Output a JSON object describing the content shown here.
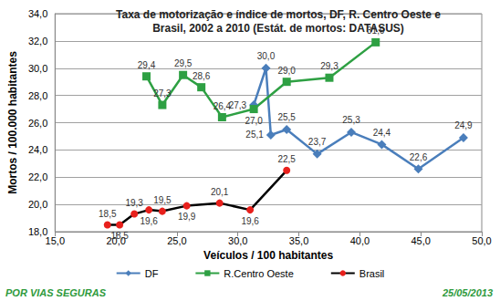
{
  "chart_data": {
    "type": "line",
    "title": "Taxa de motorização e índice de mortos, DF, R. Centro Oeste e\nBrasil, 2002 a 2010 (Estát. de mortos: DATASUS)",
    "x_label": "Veículos / 100 habitantes",
    "y_label": "Mortos / 100.000 habitantes",
    "source": "POR VIAS SEGURAS",
    "date": "25/05/2013",
    "xlim": [
      15,
      50
    ],
    "xticks": [
      {
        "value": 15,
        "label": "15,0"
      },
      {
        "value": 20,
        "label": "20,0"
      },
      {
        "value": 25,
        "label": "25,0"
      },
      {
        "value": 30,
        "label": "30,0"
      },
      {
        "value": 35,
        "label": "35,0"
      },
      {
        "value": 40,
        "label": "40,0"
      },
      {
        "value": 45,
        "label": "45,0"
      },
      {
        "value": 50,
        "label": "50,0"
      }
    ],
    "ylim": [
      18,
      34
    ],
    "yticks": [
      {
        "value": 18,
        "label": "18,0"
      },
      {
        "value": 20,
        "label": "20,0"
      },
      {
        "value": 22,
        "label": "22,0"
      },
      {
        "value": 24,
        "label": "24,0"
      },
      {
        "value": 26,
        "label": "26,0"
      },
      {
        "value": 28,
        "label": "28,0"
      },
      {
        "value": 30,
        "label": "30,0"
      },
      {
        "value": 32,
        "label": "32,0"
      },
      {
        "value": 34,
        "label": "34,0"
      }
    ],
    "grid": true,
    "legend": "bottom",
    "data_labels": true,
    "series": [
      {
        "name": "DF",
        "color": "#4a7ebb",
        "marker": "diamond",
        "x": [
          31.3,
          32.3,
          32.7,
          34.0,
          36.5,
          39.3,
          41.8,
          44.8,
          48.5
        ],
        "values": [
          27.3,
          30.0,
          25.1,
          25.5,
          23.7,
          25.3,
          24.4,
          22.6,
          24.9
        ],
        "value_labels": [
          "27,3",
          "30,0",
          "25,1",
          "25,5",
          "23,7",
          "25,3",
          "24,4",
          "22,6",
          "24,9"
        ]
      },
      {
        "name": "R.Centro Oeste",
        "color": "#2ea043",
        "marker": "square",
        "x": [
          22.5,
          23.8,
          25.5,
          27.0,
          28.7,
          31.3,
          34.0,
          37.5,
          41.3
        ],
        "values": [
          29.4,
          27.3,
          29.5,
          28.6,
          26.4,
          27.0,
          29.0,
          29.3,
          31.9
        ],
        "value_labels": [
          "29,4",
          "27,3",
          "29,5",
          "28,6",
          "26,4",
          "27,0",
          "29,0",
          "29,3",
          "31,9"
        ]
      },
      {
        "name": "Brasil",
        "color": "#e8201c",
        "marker": "circle",
        "x": [
          19.3,
          20.3,
          21.5,
          22.7,
          23.8,
          25.8,
          28.5,
          31.0,
          34.0
        ],
        "values": [
          18.5,
          18.5,
          19.3,
          19.6,
          19.5,
          19.9,
          20.1,
          19.6,
          22.5
        ],
        "value_labels": [
          "18,5",
          "18,5",
          "19,3",
          "19,6",
          "19,5",
          "19,9",
          "20,1",
          "19,6",
          "22,5"
        ]
      }
    ]
  }
}
